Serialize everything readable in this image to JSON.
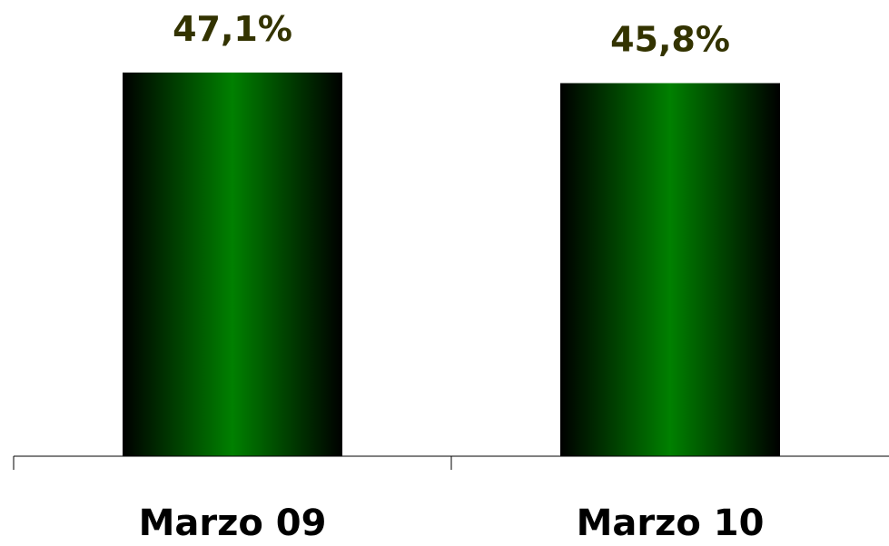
{
  "chart_data": {
    "type": "bar",
    "categories": [
      "Marzo 09",
      "Marzo 10"
    ],
    "values": [
      47.1,
      45.8
    ],
    "data_labels": [
      "47,1%",
      "45,8%"
    ],
    "title": "",
    "xlabel": "",
    "ylabel": "",
    "grid": false,
    "legend": "none"
  },
  "colors": {
    "bar_center": "#008000",
    "bar_edge": "#000000",
    "label_text": "#333300",
    "axis": "#000000"
  }
}
